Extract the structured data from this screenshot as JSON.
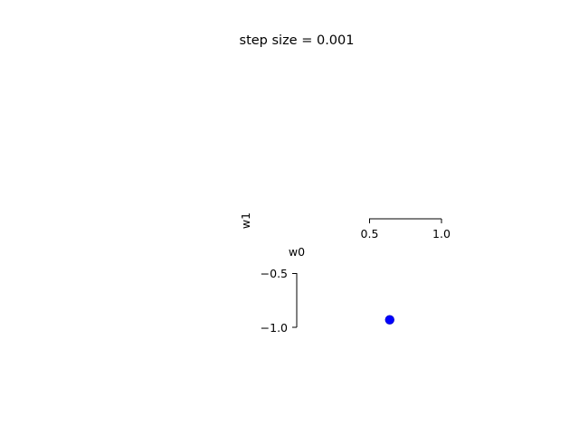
{
  "chart_data": {
    "type": "scatter",
    "title": "step size = 0.001",
    "xlabel": "w0",
    "ylabel": "w1",
    "x_ticks": [
      "0.5",
      "1.0"
    ],
    "y_ticks": [
      "−0.5",
      "−1.0"
    ],
    "x_tick_values": [
      0.5,
      1.0
    ],
    "y_tick_values": [
      -0.5,
      -1.0
    ],
    "grid": false,
    "legend": "none",
    "series": [
      {
        "color": "#0000ff",
        "marker": "circle",
        "points": [
          {
            "x": 0.64,
            "y": -0.93
          }
        ]
      }
    ]
  }
}
